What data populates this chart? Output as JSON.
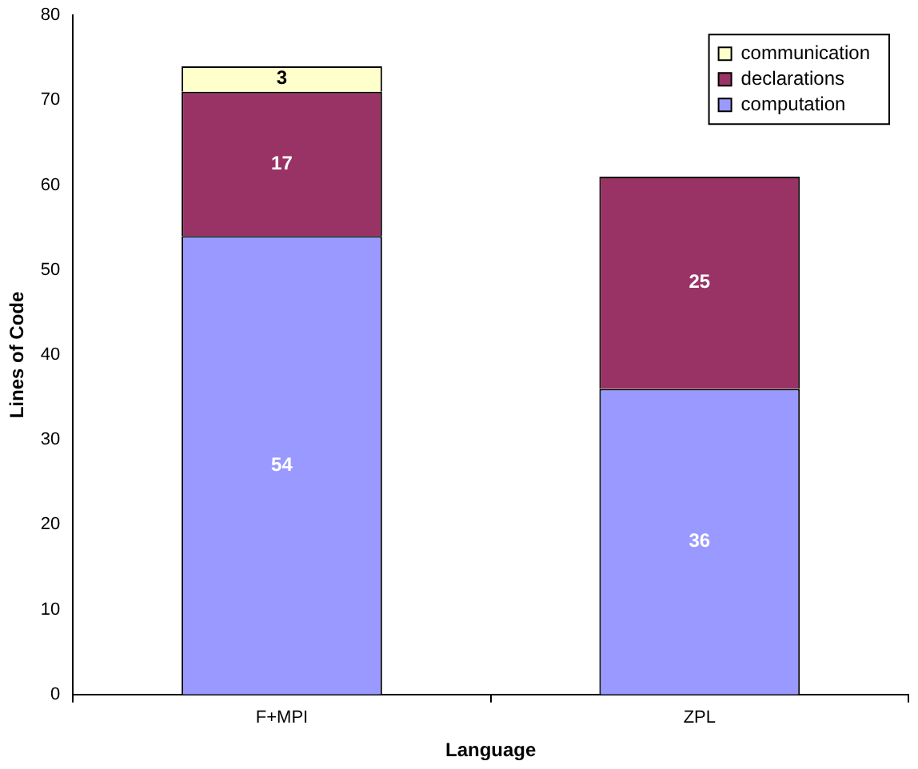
{
  "chart_data": {
    "type": "bar",
    "stacked": true,
    "xlabel": "Language",
    "ylabel": "Lines of Code",
    "categories": [
      "F+MPI",
      "ZPL"
    ],
    "series": [
      {
        "name": "computation",
        "color": "#9999ff",
        "values": [
          54,
          36
        ]
      },
      {
        "name": "declarations",
        "color": "#993366",
        "values": [
          17,
          25
        ]
      },
      {
        "name": "communication",
        "color": "#ffffcc",
        "values": [
          3,
          null
        ]
      }
    ],
    "ylim": [
      0,
      80
    ],
    "yticks": [
      0,
      10,
      20,
      30,
      40,
      50,
      60,
      70,
      80
    ],
    "grid": false,
    "legend": "top right",
    "data_labels": true
  }
}
